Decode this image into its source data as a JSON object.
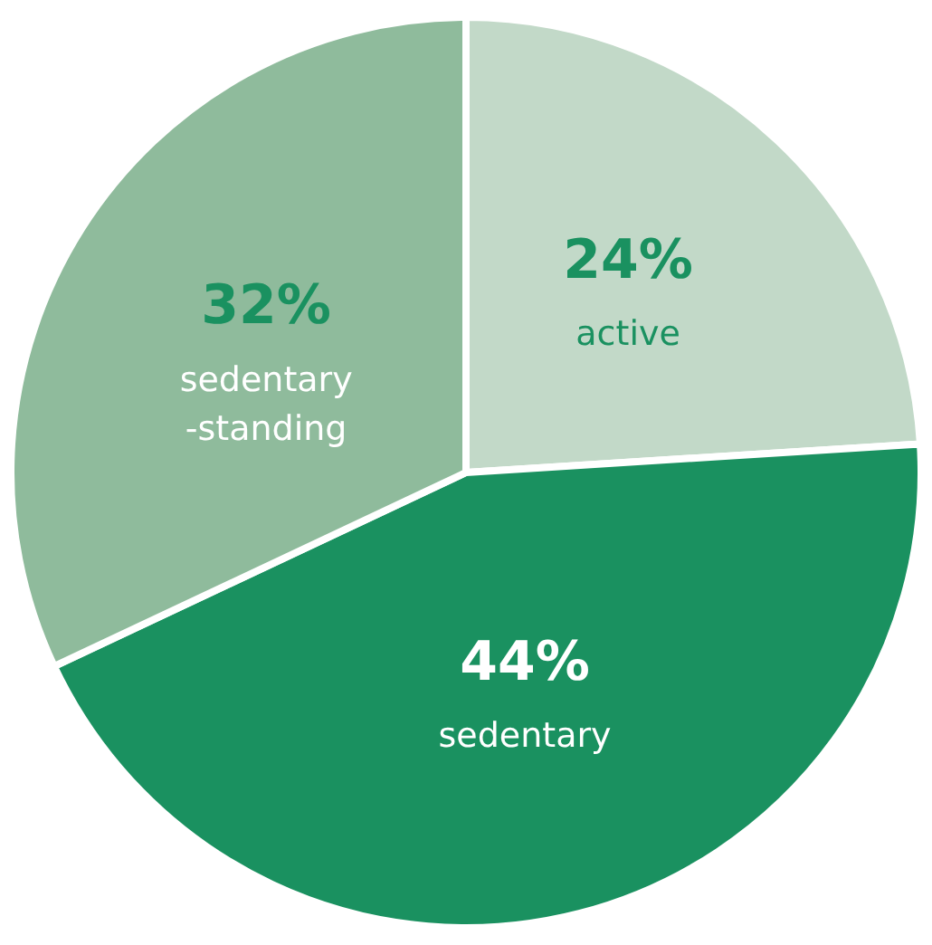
{
  "chart_data": {
    "type": "pie",
    "categories": [
      "active",
      "sedentary",
      "sedentary-standing"
    ],
    "values": [
      24,
      44,
      32
    ],
    "colors": [
      "#c2d9c8",
      "#1a9160",
      "#8fbb9c"
    ],
    "value_labels": [
      "24%",
      "44%",
      "32%"
    ],
    "legend": false
  }
}
